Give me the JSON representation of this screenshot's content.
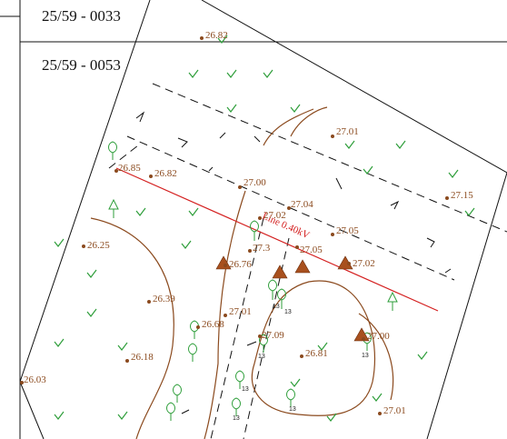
{
  "sheet_labels": [
    "25/59 - 0033",
    "25/59 - 0053"
  ],
  "power_line_label": "Line 0.40kV",
  "spot_heights": [
    {
      "value": "26.82"
    },
    {
      "value": "27.01"
    },
    {
      "value": "27.15"
    },
    {
      "value": "26.85"
    },
    {
      "value": "26.82"
    },
    {
      "value": "27.00"
    },
    {
      "value": "27.04"
    },
    {
      "value": "27.02"
    },
    {
      "value": "27.05"
    },
    {
      "value": "27.05"
    },
    {
      "value": "27.02"
    },
    {
      "value": "27.3"
    },
    {
      "value": "26.76"
    },
    {
      "value": "26.25"
    },
    {
      "value": "26.39"
    },
    {
      "value": "27.01"
    },
    {
      "value": "26.68"
    },
    {
      "value": "27.09"
    },
    {
      "value": "27.00"
    },
    {
      "value": "26.18"
    },
    {
      "value": "26.81"
    },
    {
      "value": "26.03"
    },
    {
      "value": "27.01"
    }
  ],
  "tree_tags": [
    "13",
    "13",
    "13",
    "13",
    "13",
    "13",
    "13"
  ],
  "colors": {
    "contour": "#8b4a1e",
    "vegetation": "#2e9e3a",
    "power_line": "#d42020",
    "line": "#111111"
  }
}
